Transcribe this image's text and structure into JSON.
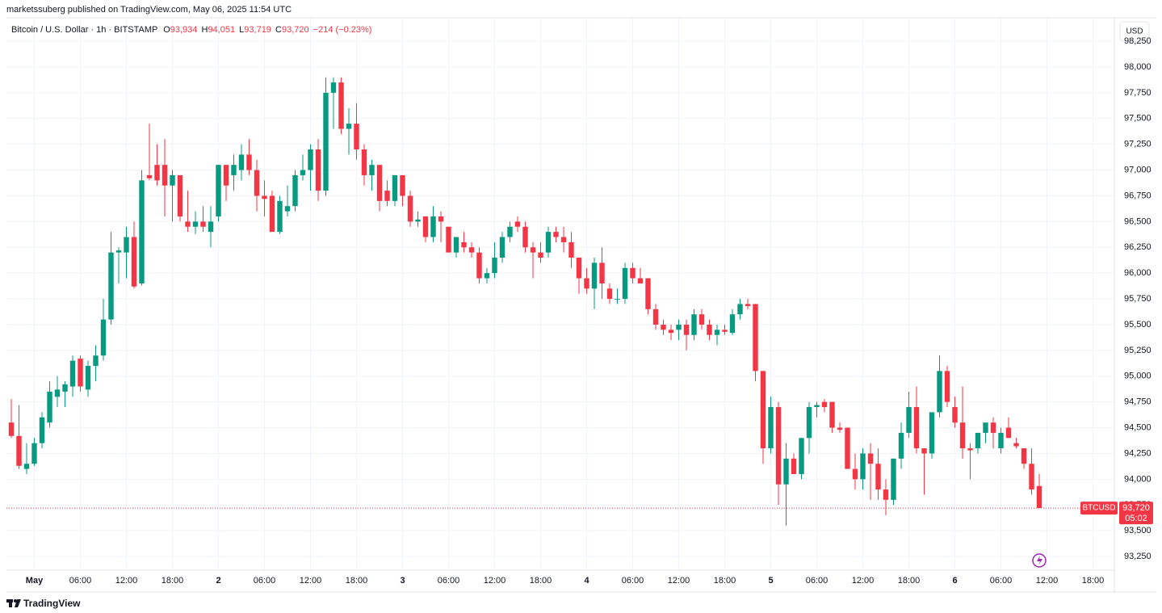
{
  "published": "marketssuberg published on TradingView.com, May 06, 2025 11:54 UTC",
  "footer": "TradingView",
  "chart_data": {
    "type": "candlestick",
    "title": "Bitcoin / U.S. Dollar · 1h · BITSTAMP",
    "ohlc_labels": [
      {
        "key": "O",
        "value": "93,934"
      },
      {
        "key": "H",
        "value": "94,051"
      },
      {
        "key": "L",
        "value": "93,719"
      },
      {
        "key": "C",
        "value": "93,720"
      }
    ],
    "change_label": "−214 (−0.23%)",
    "currency": "USD",
    "last_price_label": "93,720",
    "countdown": "05:02",
    "grid": true,
    "categories": [
      null,
      null,
      null,
      "May",
      null,
      null,
      null,
      null,
      null,
      "06:00",
      null,
      null,
      null,
      null,
      null,
      "12:00",
      null,
      null,
      null,
      null,
      null,
      "18:00",
      null,
      null,
      null,
      null,
      null,
      "2",
      null,
      null,
      null,
      null,
      null,
      "06:00",
      null,
      null,
      null,
      null,
      null,
      "12:00",
      null,
      null,
      null,
      null,
      null,
      "18:00",
      null,
      null,
      null,
      null,
      null,
      "3",
      null,
      null,
      null,
      null,
      null,
      "06:00",
      null,
      null,
      null,
      null,
      null,
      "12:00",
      null,
      null,
      null,
      null,
      null,
      "18:00",
      null,
      null,
      null,
      null,
      null,
      "4",
      null,
      null,
      null,
      null,
      null,
      "06:00",
      null,
      null,
      null,
      null,
      null,
      "12:00",
      null,
      null,
      null,
      null,
      null,
      "18:00",
      null,
      null,
      null,
      null,
      null,
      "5",
      null,
      null,
      null,
      null,
      null,
      "06:00",
      null,
      null,
      null,
      null,
      null,
      "12:00",
      null,
      null,
      null,
      null,
      null,
      "18:00",
      null,
      null,
      null,
      null,
      null,
      "6",
      null,
      null,
      null,
      null,
      null,
      "06:00",
      null,
      null,
      null,
      null,
      null,
      "12:00",
      null,
      null,
      null,
      null,
      null,
      "18:00",
      null,
      null
    ],
    "series": [
      {
        "name": "BTCUSD",
        "up_color": "#089981",
        "down_color": "#f23645",
        "open": [
          94550,
          94420,
          94100,
          94150,
          94350,
          94550,
          94800,
          94850,
          94900,
          95170,
          94870,
          95100,
          95200,
          95550,
          96200,
          96200,
          96350,
          95900,
          96950,
          97050,
          97050,
          96850,
          96950,
          96500,
          96450,
          96500,
          96400,
          96550,
          97050,
          96950,
          97000,
          97150,
          97000,
          96750,
          96750,
          96400,
          96600,
          96650,
          96950,
          97000,
          97200,
          96800,
          97750,
          97850,
          97400,
          97450,
          97200,
          96950,
          97050,
          96800,
          96700,
          96950,
          96750,
          96500,
          96550,
          96350,
          96550,
          96450,
          96200,
          96300,
          96250,
          96200,
          95950,
          96000,
          96150,
          96350,
          96500,
          96450,
          96250,
          96200,
          96200,
          96400,
          96350,
          96300,
          96150,
          95950,
          95850,
          96100,
          95850,
          95750,
          95750,
          96050,
          95950,
          95950,
          95650,
          95500,
          95450,
          95450,
          95500,
          95400,
          95600,
          95500,
          95400,
          95450,
          95420,
          95600,
          95700,
          95700,
          95050,
          94300,
          94700,
          93950,
          94200,
          94050,
          94400,
          94700,
          94750,
          94750,
          94500,
          94500,
          94100,
          94000,
          94250,
          94150,
          93900,
          93800,
          94200,
          94450,
          94700,
          94300,
          94250,
          94650,
          95050,
          94700,
          94550,
          94300,
          94300,
          94450,
          94550,
          94300,
          94500,
          94350,
          94300,
          94150,
          93934,
          null,
          null,
          null,
          null,
          null,
          null,
          null,
          null,
          null
        ],
        "high": [
          94780,
          94720,
          94350,
          94400,
          94650,
          94950,
          95000,
          94950,
          95200,
          95200,
          95150,
          95300,
          95750,
          96400,
          96250,
          96450,
          96500,
          97000,
          97450,
          97250,
          97300,
          97000,
          96950,
          96800,
          96600,
          96650,
          96650,
          97050,
          97050,
          97150,
          97250,
          97300,
          97100,
          96900,
          96800,
          96750,
          96850,
          97000,
          97150,
          97250,
          97300,
          97900,
          97900,
          97900,
          97600,
          97650,
          97250,
          97100,
          97050,
          96900,
          96950,
          96950,
          96800,
          96600,
          96550,
          96650,
          96600,
          96450,
          96350,
          96400,
          96300,
          96250,
          96050,
          96300,
          96400,
          96500,
          96550,
          96500,
          96300,
          96300,
          96450,
          96450,
          96450,
          96400,
          96150,
          96050,
          96150,
          96250,
          95900,
          95850,
          96100,
          96100,
          96050,
          95950,
          95700,
          95550,
          95500,
          95550,
          95550,
          95650,
          95650,
          95550,
          95500,
          95500,
          95650,
          95750,
          95750,
          95700,
          95050,
          94800,
          94750,
          94350,
          94250,
          94400,
          94750,
          94750,
          94780,
          94750,
          94550,
          94500,
          94250,
          94300,
          94350,
          94300,
          94000,
          94200,
          94550,
          94850,
          94900,
          94300,
          94650,
          95200,
          95100,
          94800,
          94900,
          94350,
          94450,
          94550,
          94600,
          94500,
          94600,
          94400,
          94300,
          94300,
          94051,
          null,
          null,
          null,
          null,
          null,
          null,
          null,
          null,
          null
        ],
        "low": [
          94400,
          94100,
          94050,
          94130,
          94300,
          94500,
          94700,
          94700,
          94800,
          94850,
          94800,
          94950,
          95150,
          95500,
          95900,
          95950,
          95850,
          95880,
          96900,
          96850,
          96550,
          96500,
          96500,
          96400,
          96380,
          96400,
          96250,
          96500,
          96700,
          96800,
          96900,
          96950,
          96600,
          96550,
          96400,
          96380,
          96550,
          96600,
          96900,
          96800,
          96700,
          96750,
          97400,
          97350,
          97150,
          97100,
          96850,
          96800,
          96600,
          96650,
          96650,
          96650,
          96450,
          96450,
          96300,
          96300,
          96300,
          96200,
          96150,
          96200,
          96150,
          95900,
          95900,
          95950,
          96100,
          96300,
          96400,
          96200,
          95950,
          96100,
          96150,
          96300,
          96200,
          96050,
          95800,
          95800,
          95650,
          95750,
          95700,
          95700,
          95700,
          95900,
          95900,
          95600,
          95450,
          95400,
          95350,
          95350,
          95250,
          95350,
          95450,
          95350,
          95300,
          95400,
          95400,
          95550,
          95650,
          94950,
          94150,
          94250,
          93750,
          93550,
          94050,
          94000,
          94250,
          94600,
          94650,
          94450,
          94450,
          94100,
          93900,
          93900,
          93800,
          93800,
          93650,
          93750,
          94100,
          94400,
          94250,
          93850,
          94200,
          94600,
          94700,
          94500,
          94200,
          94000,
          94250,
          94350,
          94300,
          94250,
          94400,
          94300,
          94100,
          93850,
          93719,
          null,
          null,
          null,
          null,
          null,
          null,
          null,
          null,
          null
        ],
        "close": [
          94420,
          94130,
          94150,
          94350,
          94600,
          94850,
          94870,
          94920,
          95150,
          94900,
          95100,
          95200,
          95550,
          96200,
          96220,
          96350,
          95870,
          96900,
          96920,
          96900,
          96850,
          96950,
          96550,
          96450,
          96500,
          96450,
          96500,
          97050,
          96850,
          97050,
          97150,
          97000,
          96750,
          96720,
          96400,
          96700,
          96650,
          96950,
          97000,
          97200,
          96800,
          97750,
          97850,
          97400,
          97450,
          97200,
          96950,
          97050,
          96700,
          96700,
          96950,
          96750,
          96500,
          96520,
          96350,
          96550,
          96500,
          96200,
          96350,
          96250,
          96200,
          95950,
          96000,
          96150,
          96350,
          96450,
          96450,
          96250,
          96200,
          96150,
          96400,
          96350,
          96300,
          96150,
          95950,
          95850,
          96100,
          95900,
          95750,
          95750,
          96050,
          95950,
          95900,
          95650,
          95500,
          95450,
          95420,
          95500,
          95400,
          95600,
          95500,
          95400,
          95450,
          95430,
          95600,
          95700,
          95680,
          95050,
          94300,
          94700,
          93950,
          94200,
          94050,
          94400,
          94700,
          94720,
          94700,
          94500,
          94480,
          94100,
          94000,
          94250,
          94150,
          93900,
          93800,
          94200,
          94450,
          94700,
          94300,
          94250,
          94650,
          95050,
          94750,
          94550,
          94300,
          94280,
          94450,
          94550,
          94450,
          94450,
          94400,
          94320,
          94150,
          93900,
          93720,
          null,
          null,
          null,
          null,
          null,
          null,
          null,
          null,
          null
        ]
      }
    ],
    "ylim": [
      93125,
      98415
    ],
    "yticks": [
      {
        "value": 93250,
        "label": "93,250"
      },
      {
        "value": 93500,
        "label": "93,500"
      },
      {
        "value": 93750,
        "label": "93,750"
      },
      {
        "value": 94000,
        "label": "94,000"
      },
      {
        "value": 94250,
        "label": "94,250"
      },
      {
        "value": 94500,
        "label": "94,500"
      },
      {
        "value": 94750,
        "label": "94,750"
      },
      {
        "value": 95000,
        "label": "95,000"
      },
      {
        "value": 95250,
        "label": "95,250"
      },
      {
        "value": 95500,
        "label": "95,500"
      },
      {
        "value": 95750,
        "label": "95,750"
      },
      {
        "value": 96000,
        "label": "96,000"
      },
      {
        "value": 96250,
        "label": "96,250"
      },
      {
        "value": 96500,
        "label": "96,500"
      },
      {
        "value": 96750,
        "label": "96,750"
      },
      {
        "value": 97000,
        "label": "97,000"
      },
      {
        "value": 97250,
        "label": "97,250"
      },
      {
        "value": 97500,
        "label": "97,500"
      },
      {
        "value": 97750,
        "label": "97,750"
      },
      {
        "value": 98000,
        "label": "98,000"
      },
      {
        "value": 98250,
        "label": "98,250"
      }
    ]
  }
}
